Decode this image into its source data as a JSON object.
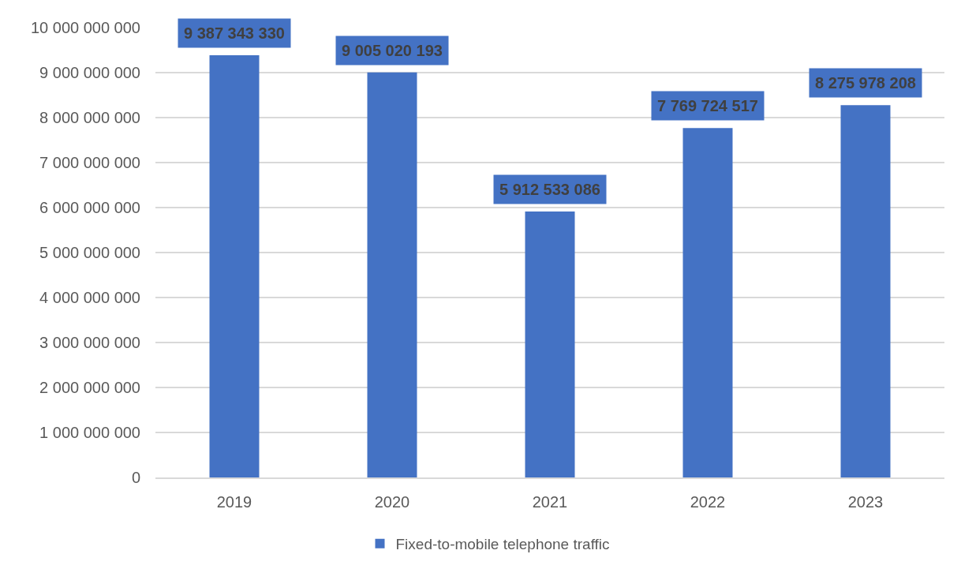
{
  "chart_data": {
    "type": "bar",
    "categories": [
      "2019",
      "2020",
      "2021",
      "2022",
      "2023"
    ],
    "series": [
      {
        "name": "Fixed-to-mobile telephone traffic",
        "color": "#4472c4",
        "values": [
          9387343330,
          9005020193,
          5912533086,
          7769724517,
          8275978208
        ],
        "value_labels": [
          "9 387 343 330",
          "9 005 020 193",
          "5 912 533 086",
          "7 769 724 517",
          "8 275 978 208"
        ]
      }
    ],
    "ylim": [
      0,
      10000000000
    ],
    "yticks": [
      0,
      {
        "value": 1000000000,
        "label": "1 000 000 000"
      },
      {
        "value": 2000000000,
        "label": "2 000 000 000"
      },
      {
        "value": 3000000000,
        "label": "3 000 000 000"
      },
      {
        "value": 4000000000,
        "label": "4 000 000 000"
      },
      {
        "value": 5000000000,
        "label": "5 000 000 000"
      },
      {
        "value": 6000000000,
        "label": "6 000 000 000"
      },
      {
        "value": 7000000000,
        "label": "7 000 000 000"
      },
      {
        "value": 8000000000,
        "label": "8 000 000 000"
      },
      {
        "value": 9000000000,
        "label": "9 000 000 000"
      },
      {
        "value": 10000000000,
        "label": "10 000 000 000"
      }
    ],
    "grid": "y",
    "legend": "bottom"
  }
}
